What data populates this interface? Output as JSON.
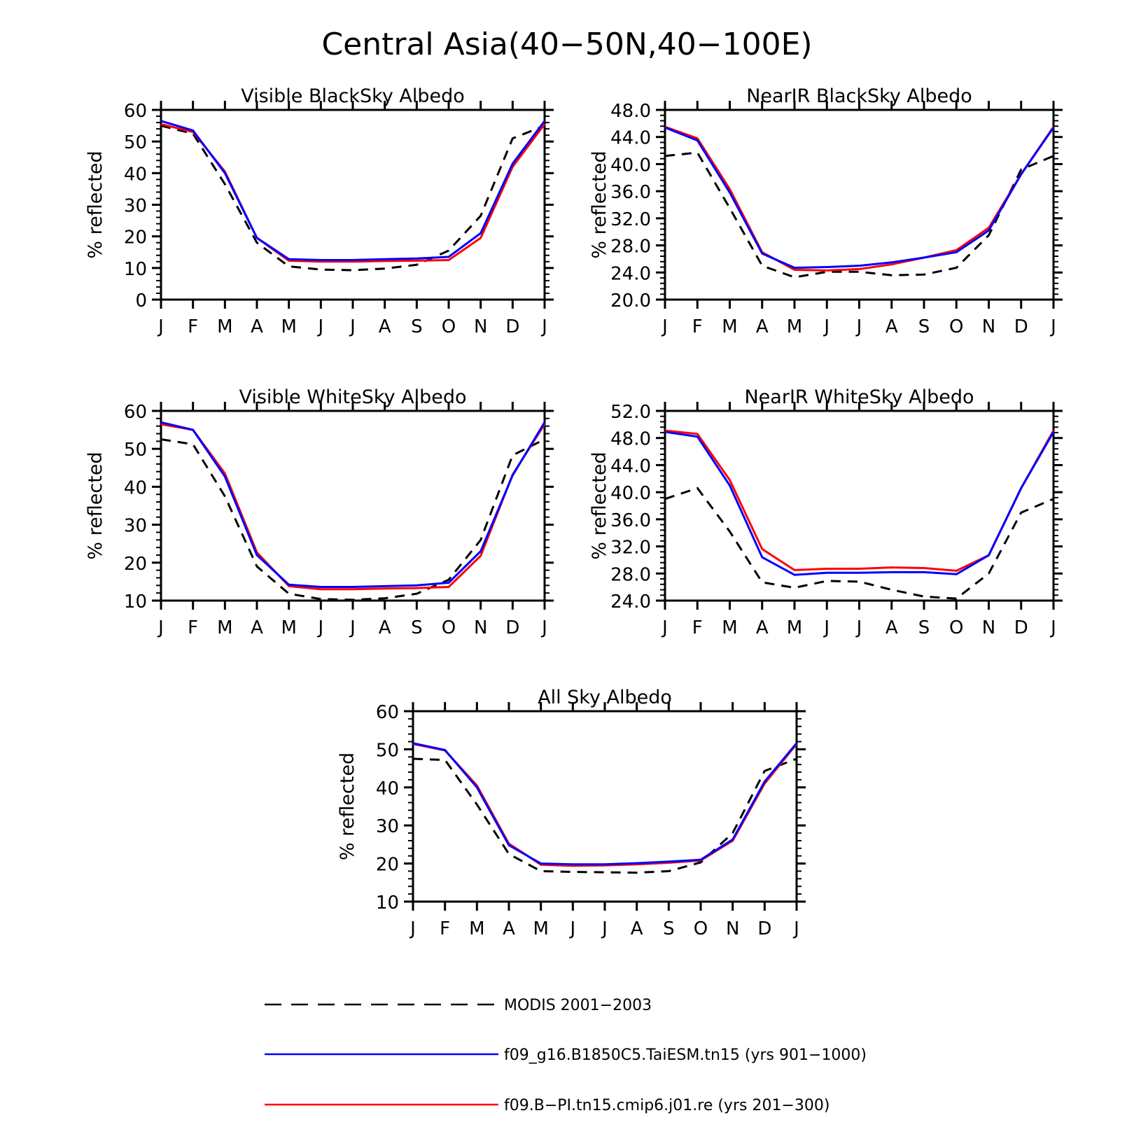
{
  "figure_title": "Central Asia(40−50N,40−100E)",
  "months": [
    "J",
    "F",
    "M",
    "A",
    "M",
    "J",
    "J",
    "A",
    "S",
    "O",
    "N",
    "D",
    "J"
  ],
  "series_styles": [
    {
      "key": "modis",
      "color": "#000000",
      "dash": true
    },
    {
      "key": "taiesm",
      "color": "#0000ff",
      "dash": false
    },
    {
      "key": "cmip6",
      "color": "#ff0000",
      "dash": false
    }
  ],
  "legend": [
    {
      "key": "modis",
      "label": "MODIS 2001−2003"
    },
    {
      "key": "taiesm",
      "label": "f09_g16.B1850C5.TaiESM.tn15 (yrs 901−1000)"
    },
    {
      "key": "cmip6",
      "label": "f09.B−PI.tn15.cmip6.j01.re (yrs 201−300)"
    }
  ],
  "chart_data": [
    {
      "type": "line",
      "title": "Visible BlackSky Albedo",
      "ylabel": "% reflected",
      "ylim": [
        0,
        60
      ],
      "yticks": [
        0,
        10,
        20,
        30,
        40,
        50,
        60
      ],
      "ytick_labels": [
        "0",
        "10",
        "20",
        "30",
        "40",
        "50",
        "60"
      ],
      "series": [
        {
          "key": "modis",
          "values": [
            55.0,
            52.5,
            36.5,
            18.0,
            10.5,
            9.5,
            9.3,
            9.8,
            11.0,
            15.5,
            26.5,
            51.0,
            55.0
          ]
        },
        {
          "key": "cmip6",
          "values": [
            55.5,
            53.0,
            40.5,
            19.5,
            12.3,
            12.0,
            12.0,
            12.2,
            12.3,
            12.5,
            19.5,
            42.0,
            55.5
          ]
        },
        {
          "key": "taiesm",
          "values": [
            56.5,
            53.5,
            40.0,
            19.5,
            12.8,
            12.5,
            12.5,
            12.8,
            13.0,
            13.5,
            21.0,
            43.0,
            56.5
          ]
        }
      ]
    },
    {
      "type": "line",
      "title": "NearIR BlackSky Albedo",
      "ylabel": "% reflected",
      "ylim": [
        20,
        48
      ],
      "yticks": [
        20,
        24,
        28,
        32,
        36,
        40,
        44,
        48
      ],
      "ytick_labels": [
        "20.0",
        "24.0",
        "28.0",
        "32.0",
        "36.0",
        "40.0",
        "44.0",
        "48.0"
      ],
      "series": [
        {
          "key": "modis",
          "values": [
            41.2,
            41.7,
            33.5,
            25.0,
            23.3,
            24.1,
            24.1,
            23.6,
            23.7,
            24.7,
            29.5,
            39.2,
            41.2
          ]
        },
        {
          "key": "cmip6",
          "values": [
            45.5,
            43.8,
            36.3,
            27.0,
            24.4,
            24.3,
            24.5,
            25.2,
            26.2,
            27.3,
            30.6,
            38.5,
            45.5
          ]
        },
        {
          "key": "taiesm",
          "values": [
            45.4,
            43.5,
            35.8,
            26.8,
            24.7,
            24.8,
            25.0,
            25.5,
            26.2,
            27.0,
            30.2,
            38.5,
            45.4
          ]
        }
      ]
    },
    {
      "type": "line",
      "title": "Visible WhiteSky Albedo",
      "ylabel": "% reflected",
      "ylim": [
        10,
        60
      ],
      "yticks": [
        10,
        20,
        30,
        40,
        50,
        60
      ],
      "ytick_labels": [
        "10",
        "20",
        "30",
        "40",
        "50",
        "60"
      ],
      "series": [
        {
          "key": "modis",
          "values": [
            52.5,
            51.2,
            37.5,
            19.0,
            11.8,
            10.4,
            10.2,
            10.6,
            11.8,
            15.5,
            26.0,
            48.3,
            52.5
          ]
        },
        {
          "key": "cmip6",
          "values": [
            56.5,
            55.0,
            43.5,
            22.7,
            13.8,
            13.0,
            13.0,
            13.2,
            13.3,
            13.6,
            21.8,
            43.2,
            56.5
          ]
        },
        {
          "key": "taiesm",
          "values": [
            57.0,
            55.0,
            42.7,
            22.0,
            14.2,
            13.6,
            13.6,
            13.8,
            14.0,
            14.7,
            23.0,
            43.0,
            57.0
          ]
        }
      ]
    },
    {
      "type": "line",
      "title": "NearIR WhiteSky Albedo",
      "ylabel": "% reflected",
      "ylim": [
        24,
        52
      ],
      "yticks": [
        24,
        28,
        32,
        36,
        40,
        44,
        48,
        52
      ],
      "ytick_labels": [
        "24.0",
        "28.0",
        "32.0",
        "36.0",
        "40.0",
        "44.0",
        "48.0",
        "52.0"
      ],
      "series": [
        {
          "key": "modis",
          "values": [
            39.0,
            40.6,
            34.2,
            26.7,
            25.9,
            26.9,
            26.8,
            25.6,
            24.6,
            24.3,
            28.0,
            37.0,
            39.0
          ]
        },
        {
          "key": "cmip6",
          "values": [
            49.1,
            48.6,
            41.8,
            31.6,
            28.5,
            28.7,
            28.7,
            28.9,
            28.8,
            28.4,
            30.7,
            40.6,
            49.1
          ]
        },
        {
          "key": "taiesm",
          "values": [
            48.9,
            48.2,
            41.0,
            30.4,
            27.8,
            28.1,
            28.1,
            28.2,
            28.2,
            27.9,
            30.7,
            40.6,
            48.9
          ]
        }
      ]
    },
    {
      "type": "line",
      "title": "All Sky Albedo",
      "ylabel": "% reflected",
      "ylim": [
        10,
        60
      ],
      "yticks": [
        10,
        20,
        30,
        40,
        50,
        60
      ],
      "ytick_labels": [
        "10",
        "20",
        "30",
        "40",
        "50",
        "60"
      ],
      "series": [
        {
          "key": "modis",
          "values": [
            47.5,
            47.2,
            35.5,
            22.5,
            18.0,
            17.8,
            17.7,
            17.6,
            18.0,
            20.3,
            28.0,
            44.3,
            47.5
          ]
        },
        {
          "key": "cmip6",
          "values": [
            51.4,
            49.7,
            40.5,
            25.2,
            19.7,
            19.4,
            19.5,
            19.8,
            20.2,
            20.8,
            26.0,
            41.0,
            51.4
          ]
        },
        {
          "key": "taiesm",
          "values": [
            51.6,
            49.8,
            40.0,
            24.8,
            20.0,
            19.8,
            19.8,
            20.1,
            20.5,
            21.0,
            26.3,
            41.5,
            51.6
          ]
        }
      ]
    }
  ]
}
